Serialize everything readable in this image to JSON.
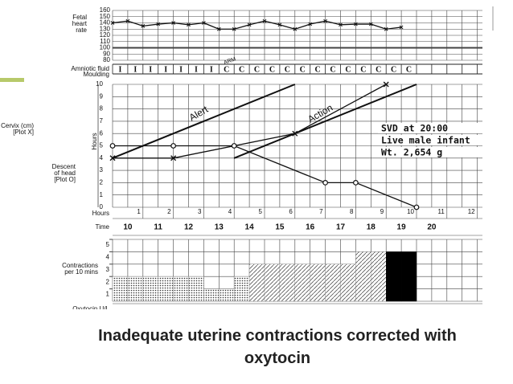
{
  "slide_title": [
    "Inadequate uterine contractions corrected  with",
    "oxytocin"
  ],
  "chart_data": [
    {
      "type": "line",
      "y_label": [
        "Fetal",
        "heart",
        "rate"
      ],
      "xlim": [
        0,
        12
      ],
      "ylim": [
        80,
        160
      ],
      "yticks": [
        80,
        90,
        100,
        110,
        120,
        130,
        140,
        150,
        160
      ],
      "color": "#111",
      "x": [
        0,
        0.5,
        1,
        1.5,
        2,
        2.5,
        3,
        3.5,
        4,
        4.5,
        5,
        5.5,
        6,
        6.5,
        7,
        7.5,
        8,
        8.5,
        9,
        9.5
      ],
      "values": [
        140,
        143,
        135,
        138,
        140,
        137,
        140,
        130,
        130,
        137,
        143,
        137,
        130,
        138,
        143,
        137,
        138,
        138,
        130,
        133
      ]
    },
    {
      "type": "text-row",
      "labels": [
        "Amniotic fluid",
        "Moulding"
      ],
      "annotation": "ARM",
      "entries": [
        "I",
        "I",
        "I",
        "I",
        "I",
        "I",
        "I",
        "C",
        "C",
        "C",
        "C",
        "C",
        "C",
        "C",
        "C",
        "C",
        "C",
        "C",
        "C",
        "C"
      ]
    },
    {
      "type": "line",
      "y_label": [
        "Cervix (cm)",
        "[Plot X]"
      ],
      "y_label_2": [
        "Descent",
        "of head",
        "[Plot O]"
      ],
      "x_label": "Hours",
      "xlim": [
        0,
        12
      ],
      "ylim": [
        0,
        10
      ],
      "yticks": [
        0,
        1,
        2,
        3,
        4,
        5,
        6,
        7,
        8,
        9,
        10
      ],
      "xticks": [
        1,
        2,
        3,
        4,
        5,
        6,
        7,
        8,
        9,
        10,
        11,
        12
      ],
      "time_label": "Time",
      "time": [
        "10",
        "11",
        "12",
        "13",
        "14",
        "15",
        "16",
        "17",
        "18",
        "19",
        "20"
      ],
      "series": [
        {
          "name": "Alert",
          "marker": "none",
          "x": [
            0,
            6
          ],
          "values": [
            4,
            10
          ]
        },
        {
          "name": "Action",
          "marker": "none",
          "x": [
            4,
            10
          ],
          "values": [
            4,
            10
          ]
        },
        {
          "marker": "x",
          "x": [
            0,
            2,
            6,
            9
          ],
          "values": [
            4,
            4,
            6,
            10
          ]
        },
        {
          "marker": "o",
          "x": [
            0,
            2,
            4,
            7,
            8,
            10
          ],
          "values": [
            5,
            5,
            5,
            2,
            2,
            0
          ]
        }
      ],
      "annotations": [
        "SVD at 20:00",
        "Live male infant",
        "Wt. 2,654 g"
      ]
    },
    {
      "type": "bar",
      "y_label": [
        "Contractions",
        "per 10 mins"
      ],
      "xlim": [
        0,
        12
      ],
      "ylim": [
        0,
        5
      ],
      "yticks": [
        1,
        2,
        3,
        4,
        5
      ],
      "x": [
        0,
        0.5,
        1,
        1.5,
        2,
        2.5,
        3,
        3.5,
        4,
        4.5,
        5,
        5.5,
        6,
        6.5,
        7,
        7.5,
        8,
        8.5,
        9,
        9.5
      ],
      "values": [
        2,
        2,
        2,
        2,
        2,
        2,
        1,
        1,
        2,
        3,
        3,
        3,
        3,
        3,
        3,
        3,
        4,
        4,
        4,
        4
      ],
      "fills": [
        "dots",
        "dots",
        "dots",
        "dots",
        "dots",
        "dots",
        "dots",
        "dots",
        "dots",
        "hatch",
        "hatch",
        "hatch",
        "hatch",
        "hatch",
        "hatch",
        "hatch",
        "hatch",
        "hatch",
        "solid",
        "solid"
      ],
      "row_label": "Oxytocin U/L"
    }
  ]
}
